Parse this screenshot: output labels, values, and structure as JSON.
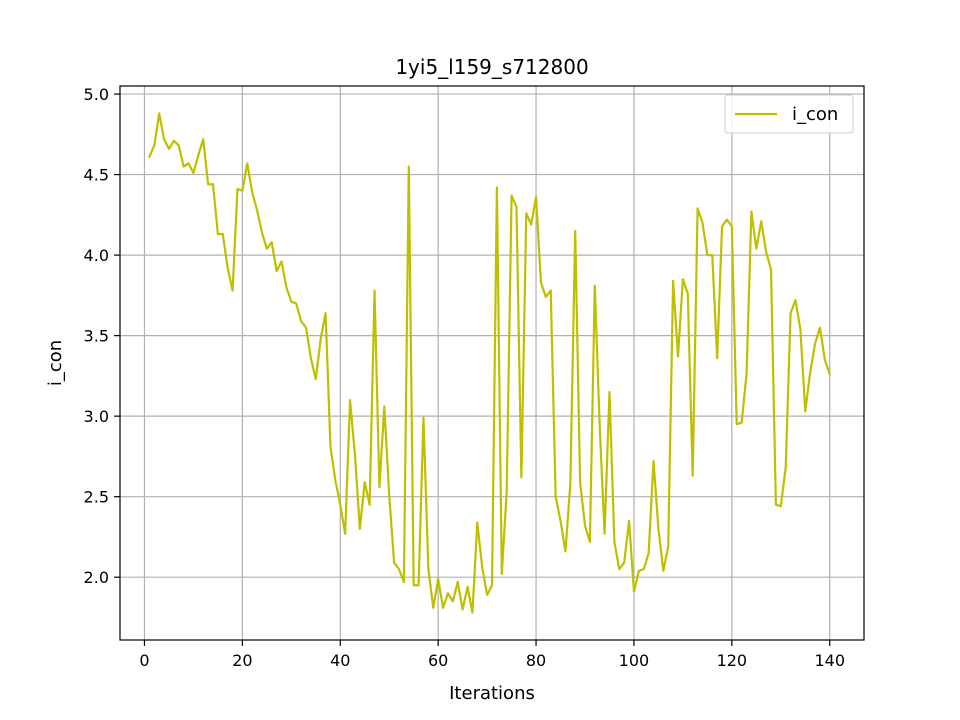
{
  "chart_data": {
    "type": "line",
    "title": "1yi5_l159_s712800",
    "xlabel": "Iterations",
    "ylabel": "i_con",
    "xlim": [
      -5,
      147
    ],
    "ylim": [
      1.61,
      5.05
    ],
    "xticks": [
      0,
      20,
      40,
      60,
      80,
      100,
      120,
      140
    ],
    "xtick_labels": [
      "0",
      "20",
      "40",
      "60",
      "80",
      "100",
      "120",
      "140"
    ],
    "yticks": [
      2.0,
      2.5,
      3.0,
      3.5,
      4.0,
      4.5,
      5.0
    ],
    "ytick_labels": [
      "2.0",
      "2.5",
      "3.0",
      "3.5",
      "4.0",
      "4.5",
      "5.0"
    ],
    "grid": true,
    "legend": "top-right",
    "colors": {
      "series": "#bfbf00",
      "grid": "#b0b0b0"
    },
    "series": [
      {
        "name": "i_con",
        "x": [
          1,
          2,
          3,
          4,
          5,
          6,
          7,
          8,
          9,
          10,
          11,
          12,
          13,
          14,
          15,
          16,
          17,
          18,
          19,
          20,
          21,
          22,
          23,
          24,
          25,
          26,
          27,
          28,
          29,
          30,
          31,
          32,
          33,
          34,
          35,
          36,
          37,
          38,
          39,
          40,
          41,
          42,
          43,
          44,
          45,
          46,
          47,
          48,
          49,
          50,
          51,
          52,
          53,
          54,
          55,
          56,
          57,
          58,
          59,
          60,
          61,
          62,
          63,
          64,
          65,
          66,
          67,
          68,
          69,
          70,
          71,
          72,
          73,
          74,
          75,
          76,
          77,
          78,
          79,
          80,
          81,
          82,
          83,
          84,
          85,
          86,
          87,
          88,
          89,
          90,
          91,
          92,
          93,
          94,
          95,
          96,
          97,
          98,
          99,
          100,
          101,
          102,
          103,
          104,
          105,
          106,
          107,
          108,
          109,
          110,
          111,
          112,
          113,
          114,
          115,
          116,
          117,
          118,
          119,
          120,
          121,
          122,
          123,
          124,
          125,
          126,
          127,
          128,
          129,
          130,
          131,
          132,
          133,
          134,
          135,
          136,
          137,
          138,
          139,
          140
        ],
        "values": [
          4.61,
          4.68,
          4.88,
          4.72,
          4.66,
          4.71,
          4.68,
          4.55,
          4.57,
          4.51,
          4.62,
          4.72,
          4.44,
          4.44,
          4.13,
          4.13,
          3.92,
          3.78,
          4.41,
          4.4,
          4.57,
          4.39,
          4.28,
          4.14,
          4.04,
          4.08,
          3.9,
          3.96,
          3.8,
          3.71,
          3.7,
          3.59,
          3.55,
          3.36,
          3.23,
          3.48,
          3.64,
          2.81,
          2.6,
          2.45,
          2.27,
          3.1,
          2.76,
          2.3,
          2.59,
          2.45,
          3.78,
          2.56,
          3.06,
          2.51,
          2.09,
          2.05,
          1.97,
          4.55,
          1.95,
          1.95,
          2.99,
          2.05,
          1.81,
          1.99,
          1.81,
          1.9,
          1.85,
          1.97,
          1.8,
          1.94,
          1.78,
          2.34,
          2.06,
          1.89,
          1.95,
          4.42,
          2.02,
          2.53,
          4.37,
          4.3,
          2.62,
          4.26,
          4.19,
          4.36,
          3.83,
          3.74,
          3.78,
          2.5,
          2.35,
          2.16,
          2.58,
          4.15,
          2.59,
          2.32,
          2.22,
          3.81,
          2.94,
          2.27,
          3.15,
          2.22,
          2.05,
          2.09,
          2.35,
          1.91,
          2.04,
          2.05,
          2.15,
          2.72,
          2.3,
          2.04,
          2.19,
          3.84,
          3.37,
          3.85,
          3.76,
          2.63,
          4.29,
          4.2,
          4.0,
          4.0,
          3.36,
          4.18,
          4.22,
          4.18,
          2.95,
          2.96,
          3.26,
          4.27,
          4.04,
          4.21,
          4.02,
          3.91,
          2.45,
          2.44,
          2.68,
          3.64,
          3.72,
          3.54,
          3.03,
          3.27,
          3.45,
          3.55,
          3.35,
          3.26
        ]
      }
    ]
  }
}
